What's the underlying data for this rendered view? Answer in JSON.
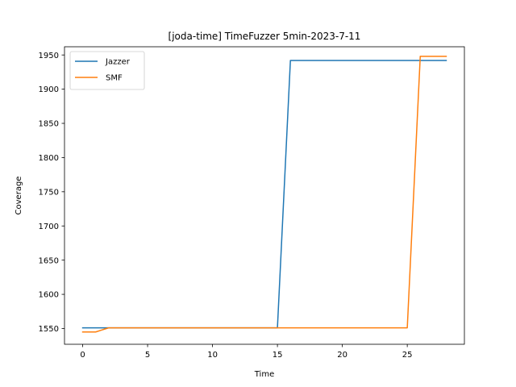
{
  "chart_data": {
    "type": "line",
    "title": "[joda-time] TimeFuzzer 5min-2023-7-11",
    "xlabel": "Time",
    "ylabel": "Coverage",
    "xlim": [
      -1.4,
      29.4
    ],
    "ylim": [
      1527,
      1962
    ],
    "xticks": [
      0,
      5,
      10,
      15,
      20,
      25
    ],
    "yticks": [
      1550,
      1600,
      1650,
      1700,
      1750,
      1800,
      1850,
      1900,
      1950
    ],
    "grid": false,
    "legend_position": "top-left",
    "series": [
      {
        "name": "Jazzer",
        "color": "#1f77b4",
        "x": [
          0,
          1,
          2,
          3,
          4,
          5,
          6,
          7,
          8,
          9,
          10,
          11,
          12,
          13,
          14,
          15,
          16,
          17,
          18,
          19,
          20,
          21,
          22,
          23,
          24,
          25,
          26,
          27,
          28
        ],
        "y": [
          1551,
          1551,
          1551,
          1551,
          1551,
          1551,
          1551,
          1551,
          1551,
          1551,
          1551,
          1551,
          1551,
          1551,
          1551,
          1551,
          1942,
          1942,
          1942,
          1942,
          1942,
          1942,
          1942,
          1942,
          1942,
          1942,
          1942,
          1942,
          1942
        ]
      },
      {
        "name": "SMF",
        "color": "#ff7f0e",
        "x": [
          0,
          1,
          2,
          3,
          4,
          5,
          6,
          7,
          8,
          9,
          10,
          11,
          12,
          13,
          14,
          15,
          16,
          17,
          18,
          19,
          20,
          21,
          22,
          23,
          24,
          25,
          26,
          27,
          28
        ],
        "y": [
          1545,
          1545,
          1551,
          1551,
          1551,
          1551,
          1551,
          1551,
          1551,
          1551,
          1551,
          1551,
          1551,
          1551,
          1551,
          1551,
          1551,
          1551,
          1551,
          1551,
          1551,
          1551,
          1551,
          1551,
          1551,
          1551,
          1948,
          1948,
          1948
        ]
      }
    ]
  }
}
